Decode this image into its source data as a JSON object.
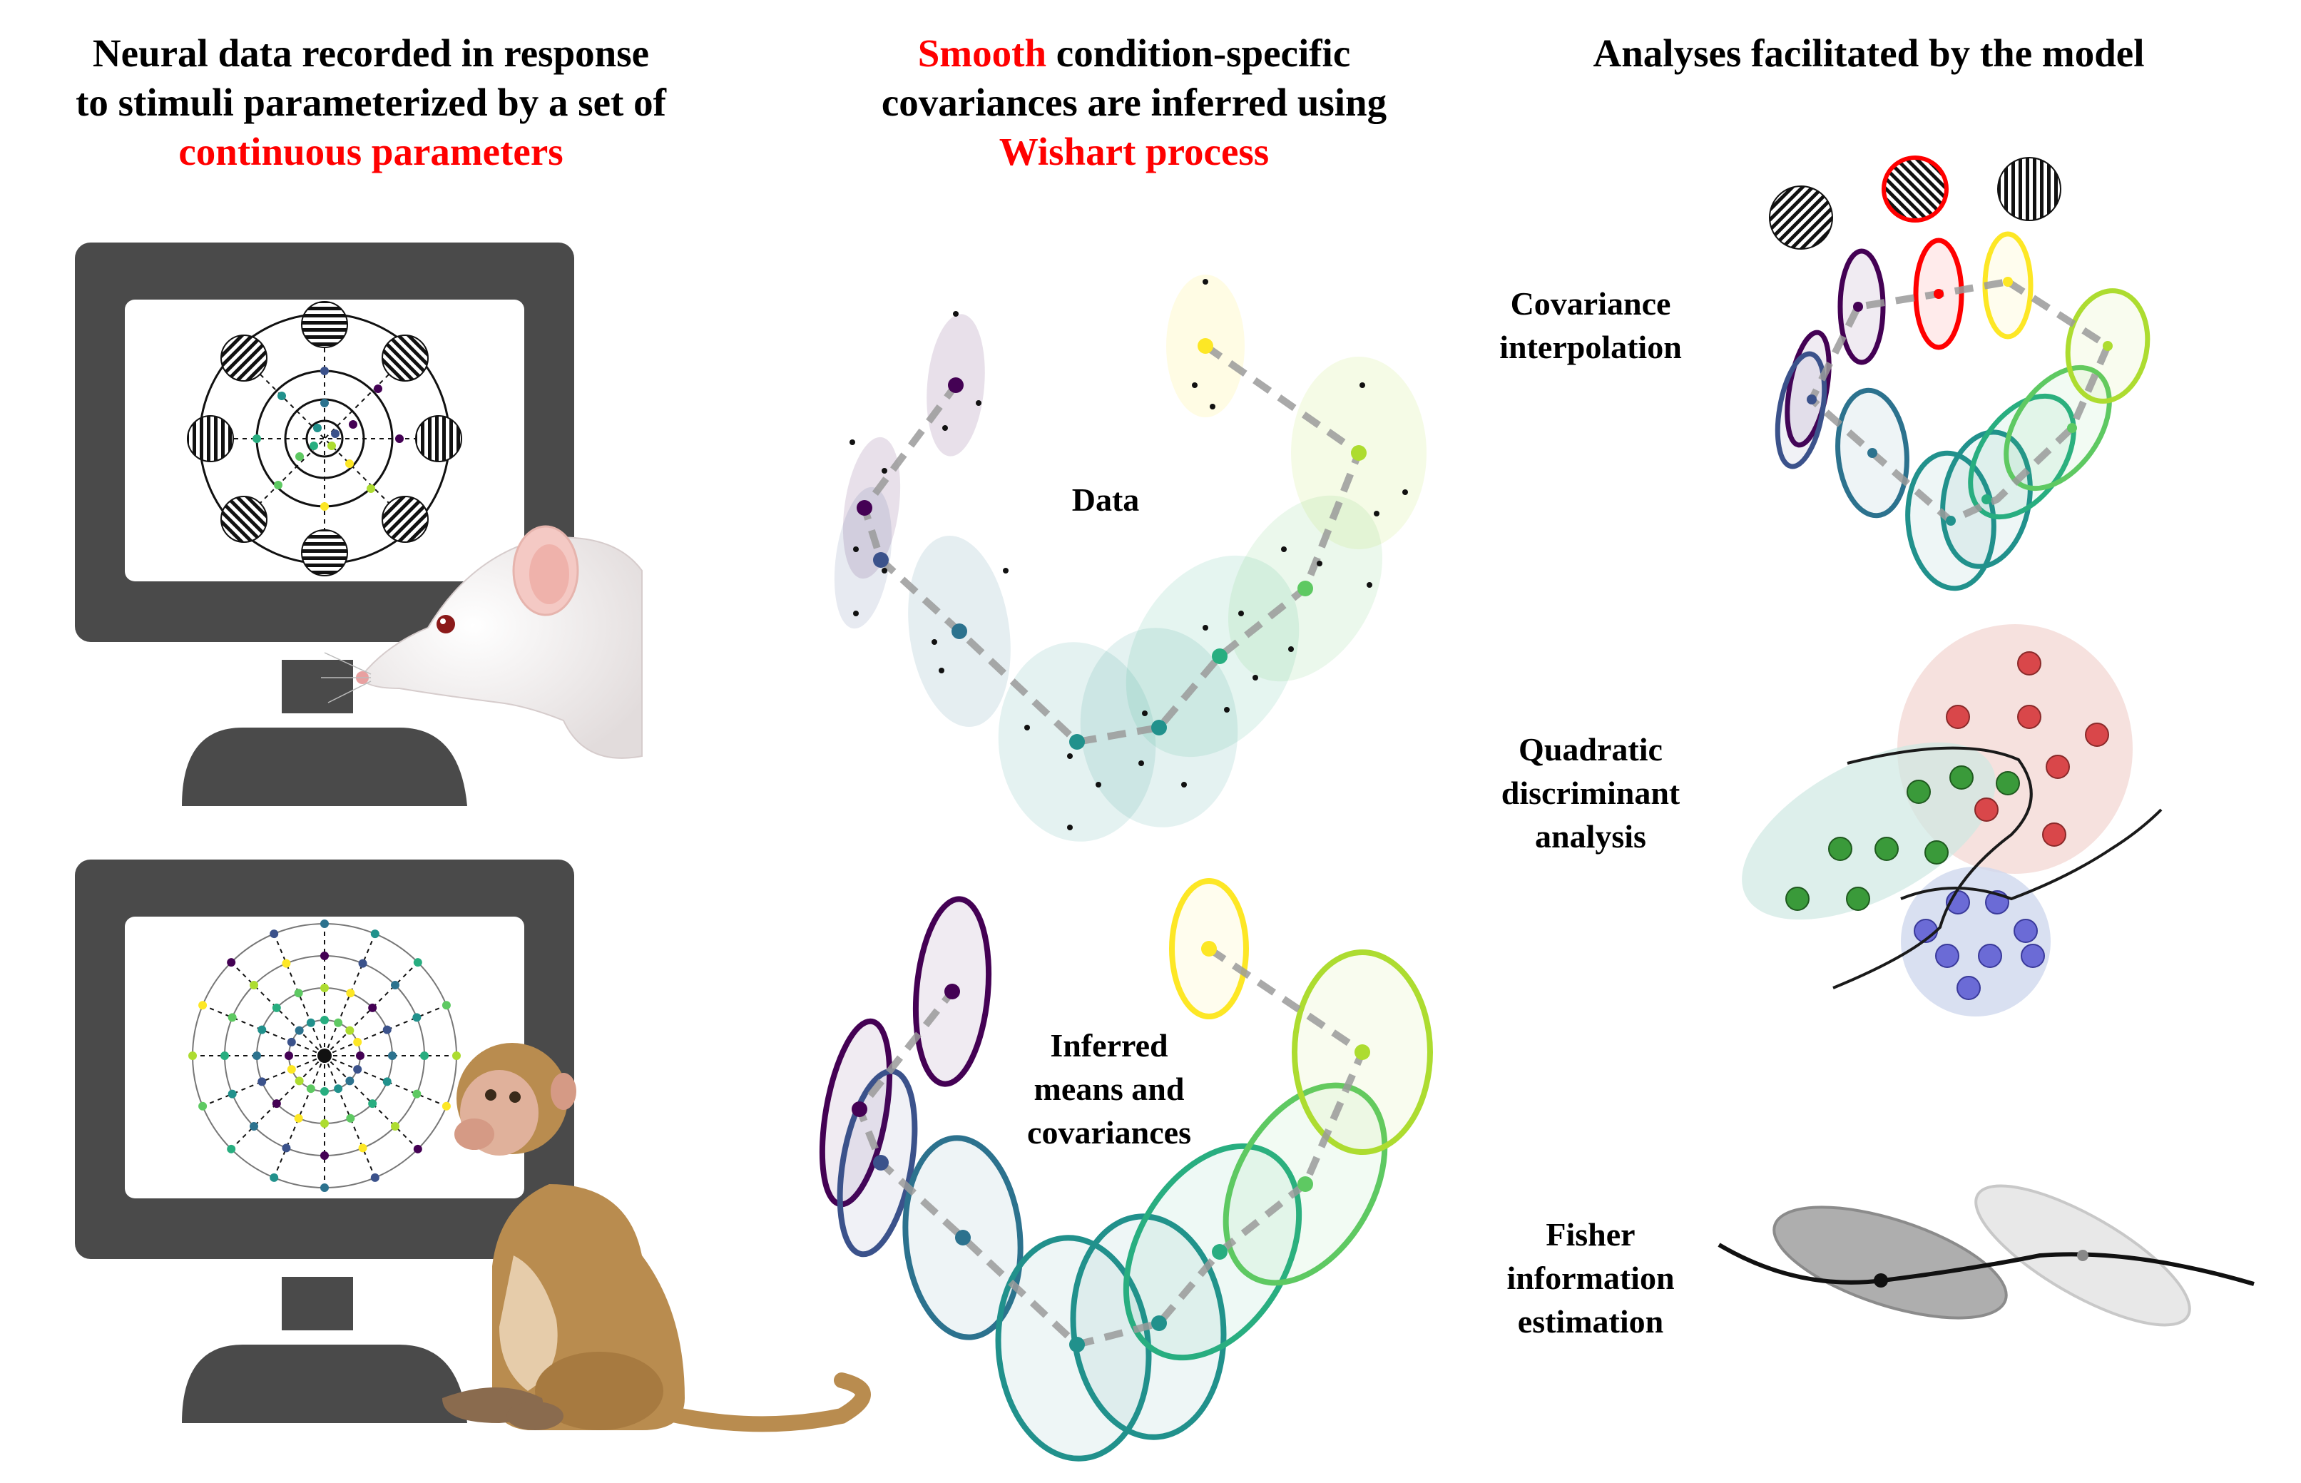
{
  "headings": {
    "left": {
      "line1": "Neural data recorded in response",
      "line2": "to stimuli parameterized by a set of",
      "line3_red": "continuous parameters"
    },
    "middle": {
      "line1_red": "Smooth",
      "line1_rest": " condition-specific",
      "line2": "covariances are inferred using",
      "line3_red": "Wishart process"
    },
    "right": {
      "line1": "Analyses facilitated by the model"
    }
  },
  "middle_labels": {
    "data": "Data",
    "inferred": [
      "Inferred",
      "means and",
      "covariances"
    ]
  },
  "analyses": [
    {
      "lines": [
        "Covariance",
        "interpolation"
      ]
    },
    {
      "lines": [
        "Quadratic",
        "discriminant",
        "analysis"
      ]
    },
    {
      "lines": [
        "Fisher",
        "information",
        "estimation"
      ]
    }
  ],
  "colors": {
    "highlight_red": "#ff0000",
    "monitor": "#4a4a4a",
    "path_gray": "#9a9a9a",
    "viridis": [
      "#440154",
      "#3b528b",
      "#2c728e",
      "#21918c",
      "#28ae80",
      "#5ec962",
      "#addc30",
      "#fde725"
    ],
    "qda_red": "#d9474a",
    "qda_green": "#3a9a3a",
    "qda_blue": "#6b6bd6"
  },
  "icons": [
    "monitor-icon",
    "rat-icon",
    "monkey-icon",
    "grating-stimulus-icon"
  ]
}
